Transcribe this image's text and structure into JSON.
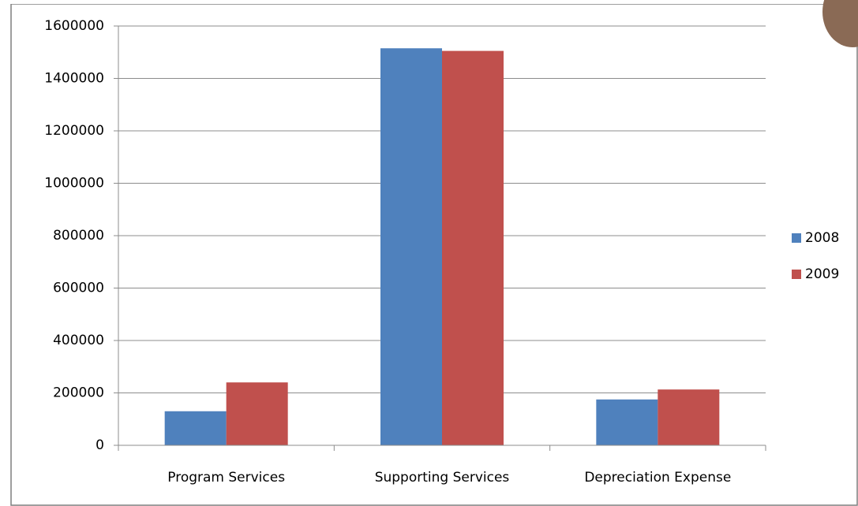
{
  "chart_data": {
    "type": "bar",
    "categories": [
      "Program Services",
      "Supporting Services",
      "Depreciation Expense"
    ],
    "series": [
      {
        "name": "2008",
        "color": "#4f81bd",
        "values": [
          130000,
          1515000,
          175000
        ]
      },
      {
        "name": "2009",
        "color": "#c0504d",
        "values": [
          240000,
          1505000,
          213000
        ]
      }
    ],
    "ylim": [
      0,
      1600000
    ],
    "yticks": [
      0,
      200000,
      400000,
      600000,
      800000,
      1000000,
      1200000,
      1400000,
      1600000
    ],
    "grid": true,
    "legend": "right"
  }
}
